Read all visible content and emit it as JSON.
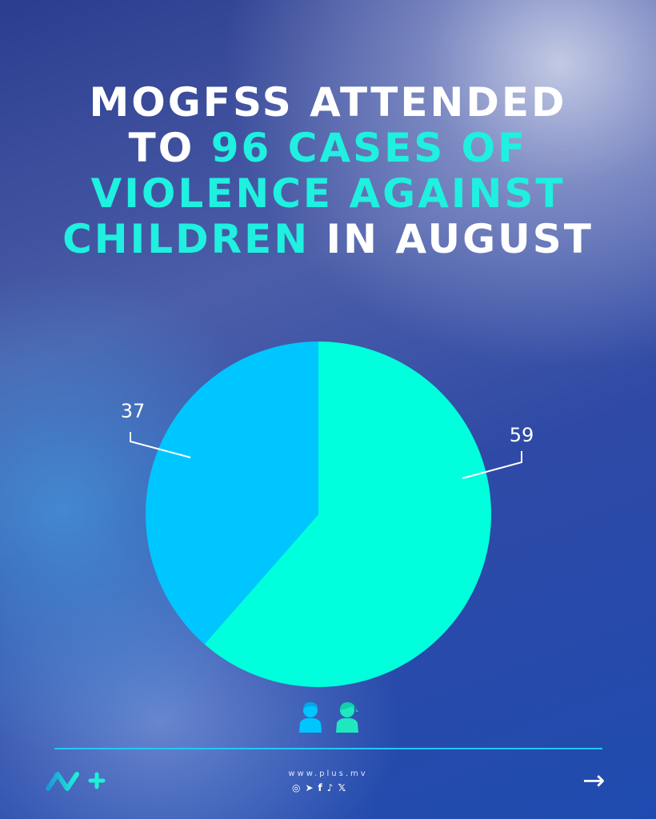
{
  "title": {
    "line1": "MOGFSS ATTENDED",
    "line2a": "TO ",
    "line2b": "96 CASES OF",
    "line3": "VIOLENCE AGAINST",
    "line4a": "CHILDREN",
    "line4b": " IN AUGUST"
  },
  "chart_data": {
    "type": "pie",
    "values": [
      59,
      37
    ],
    "labels": [
      "59",
      "37"
    ],
    "colors": [
      "#00ffdc",
      "#00c6ff"
    ],
    "legend_icons": [
      "boy-icon",
      "girl-icon"
    ]
  },
  "footer": {
    "url": "www.plus.mv",
    "socials": [
      "instagram-icon",
      "telegram-icon",
      "facebook-icon",
      "tiktok-icon",
      "x-icon"
    ],
    "brand": "MV+",
    "accent": "#22c7ff"
  }
}
